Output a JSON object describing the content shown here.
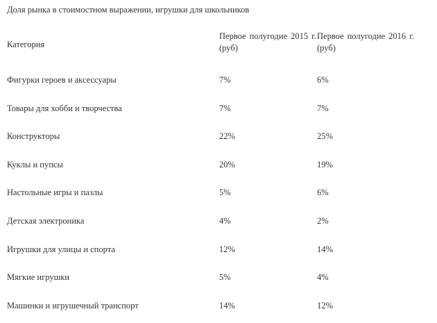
{
  "header": {
    "title": "Доля рынка в стоимостном выражении, игрушки для школьников"
  },
  "table": {
    "columns": [
      "Категория",
      "Первое полугодие 2015 г. (руб)",
      "Первое полугодие 2016 г. (руб)"
    ],
    "rows": [
      [
        "Фигурки героев и аксессуары",
        "7%",
        "6%"
      ],
      [
        "Товары для хобби и творчества",
        "7%",
        "7%"
      ],
      [
        "Конструкторы",
        "22%",
        "25%"
      ],
      [
        "Куклы и пупсы",
        "20%",
        "19%"
      ],
      [
        "Настольные игры и пазлы",
        "5%",
        "6%"
      ],
      [
        "Детская электроника",
        "4%",
        "2%"
      ],
      [
        "Игрушки для улицы и спорта",
        "12%",
        "14%"
      ],
      [
        "Мягкие игрушки",
        "5%",
        "4%"
      ],
      [
        "Машинки и игрушечный транспорт",
        "14%",
        "12%"
      ]
    ]
  }
}
